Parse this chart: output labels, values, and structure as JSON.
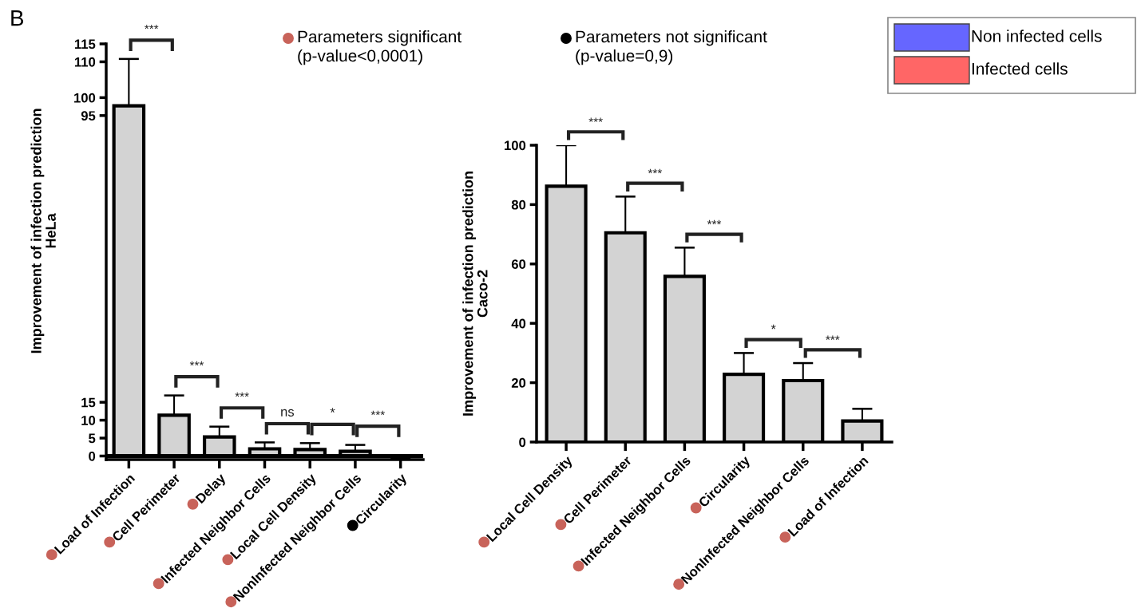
{
  "chart_data": [
    {
      "type": "bar",
      "categories": [
        "Load of Infection",
        "Cell Perimeter",
        "Delay",
        "Infected Neighbor Cells",
        "Local Cell Density",
        "NonInfected Neighbor Cells",
        "Circularity"
      ],
      "values": [
        97.7,
        11.4,
        5.3,
        2.0,
        1.8,
        1.3,
        0
      ],
      "errors": [
        [
          97.7,
          110.8
        ],
        [
          11.4,
          16.9
        ],
        [
          5.3,
          8.2
        ],
        [
          2.0,
          3.8
        ],
        [
          1.8,
          3.6
        ],
        [
          1.3,
          3.1
        ],
        [
          -0.6,
          0
        ]
      ],
      "ylim": [
        -1,
        115
      ],
      "yticks": [
        0,
        5,
        10,
        15,
        95,
        100,
        110,
        115
      ],
      "grid": false,
      "ylabel": "Improvement of infection prediction\nHeLa",
      "ref_lines": [
        {
          "axis": "y",
          "value": 0
        }
      ],
      "annotations": [
        "***",
        "***",
        "***",
        "ns",
        "*",
        "***"
      ]
    },
    {
      "type": "bar",
      "categories": [
        "Local Cell Density",
        "Cell Perimeter",
        "Infected Neighbor Cells",
        "Circularity",
        "NonInfected Neighbor Cells",
        "Load of Infection"
      ],
      "values": [
        86.2,
        70.5,
        55.8,
        22.8,
        20.7,
        7.1
      ],
      "errors": [
        [
          86.2,
          100
        ],
        [
          70.5,
          82.7
        ],
        [
          55.8,
          65.5
        ],
        [
          22.8,
          30.0
        ],
        [
          20.7,
          26.6
        ],
        [
          7.1,
          11.2
        ]
      ],
      "ylim": [
        0,
        100
      ],
      "yticks": [
        0,
        20,
        40,
        60,
        80,
        100
      ],
      "grid": false,
      "ylabel": "Improvement of infection prediction\nCaco-2",
      "annotations": [
        "***",
        "***",
        "***",
        "*",
        "***"
      ]
    },
    {
      "type": "other",
      "annotations": [
        "B",
        "Parameters significant\n(p-value<0,0001)",
        "Parameters not significant\n(p-value=0,9)",
        "Non infected cells",
        "Infected cells"
      ]
    }
  ]
}
